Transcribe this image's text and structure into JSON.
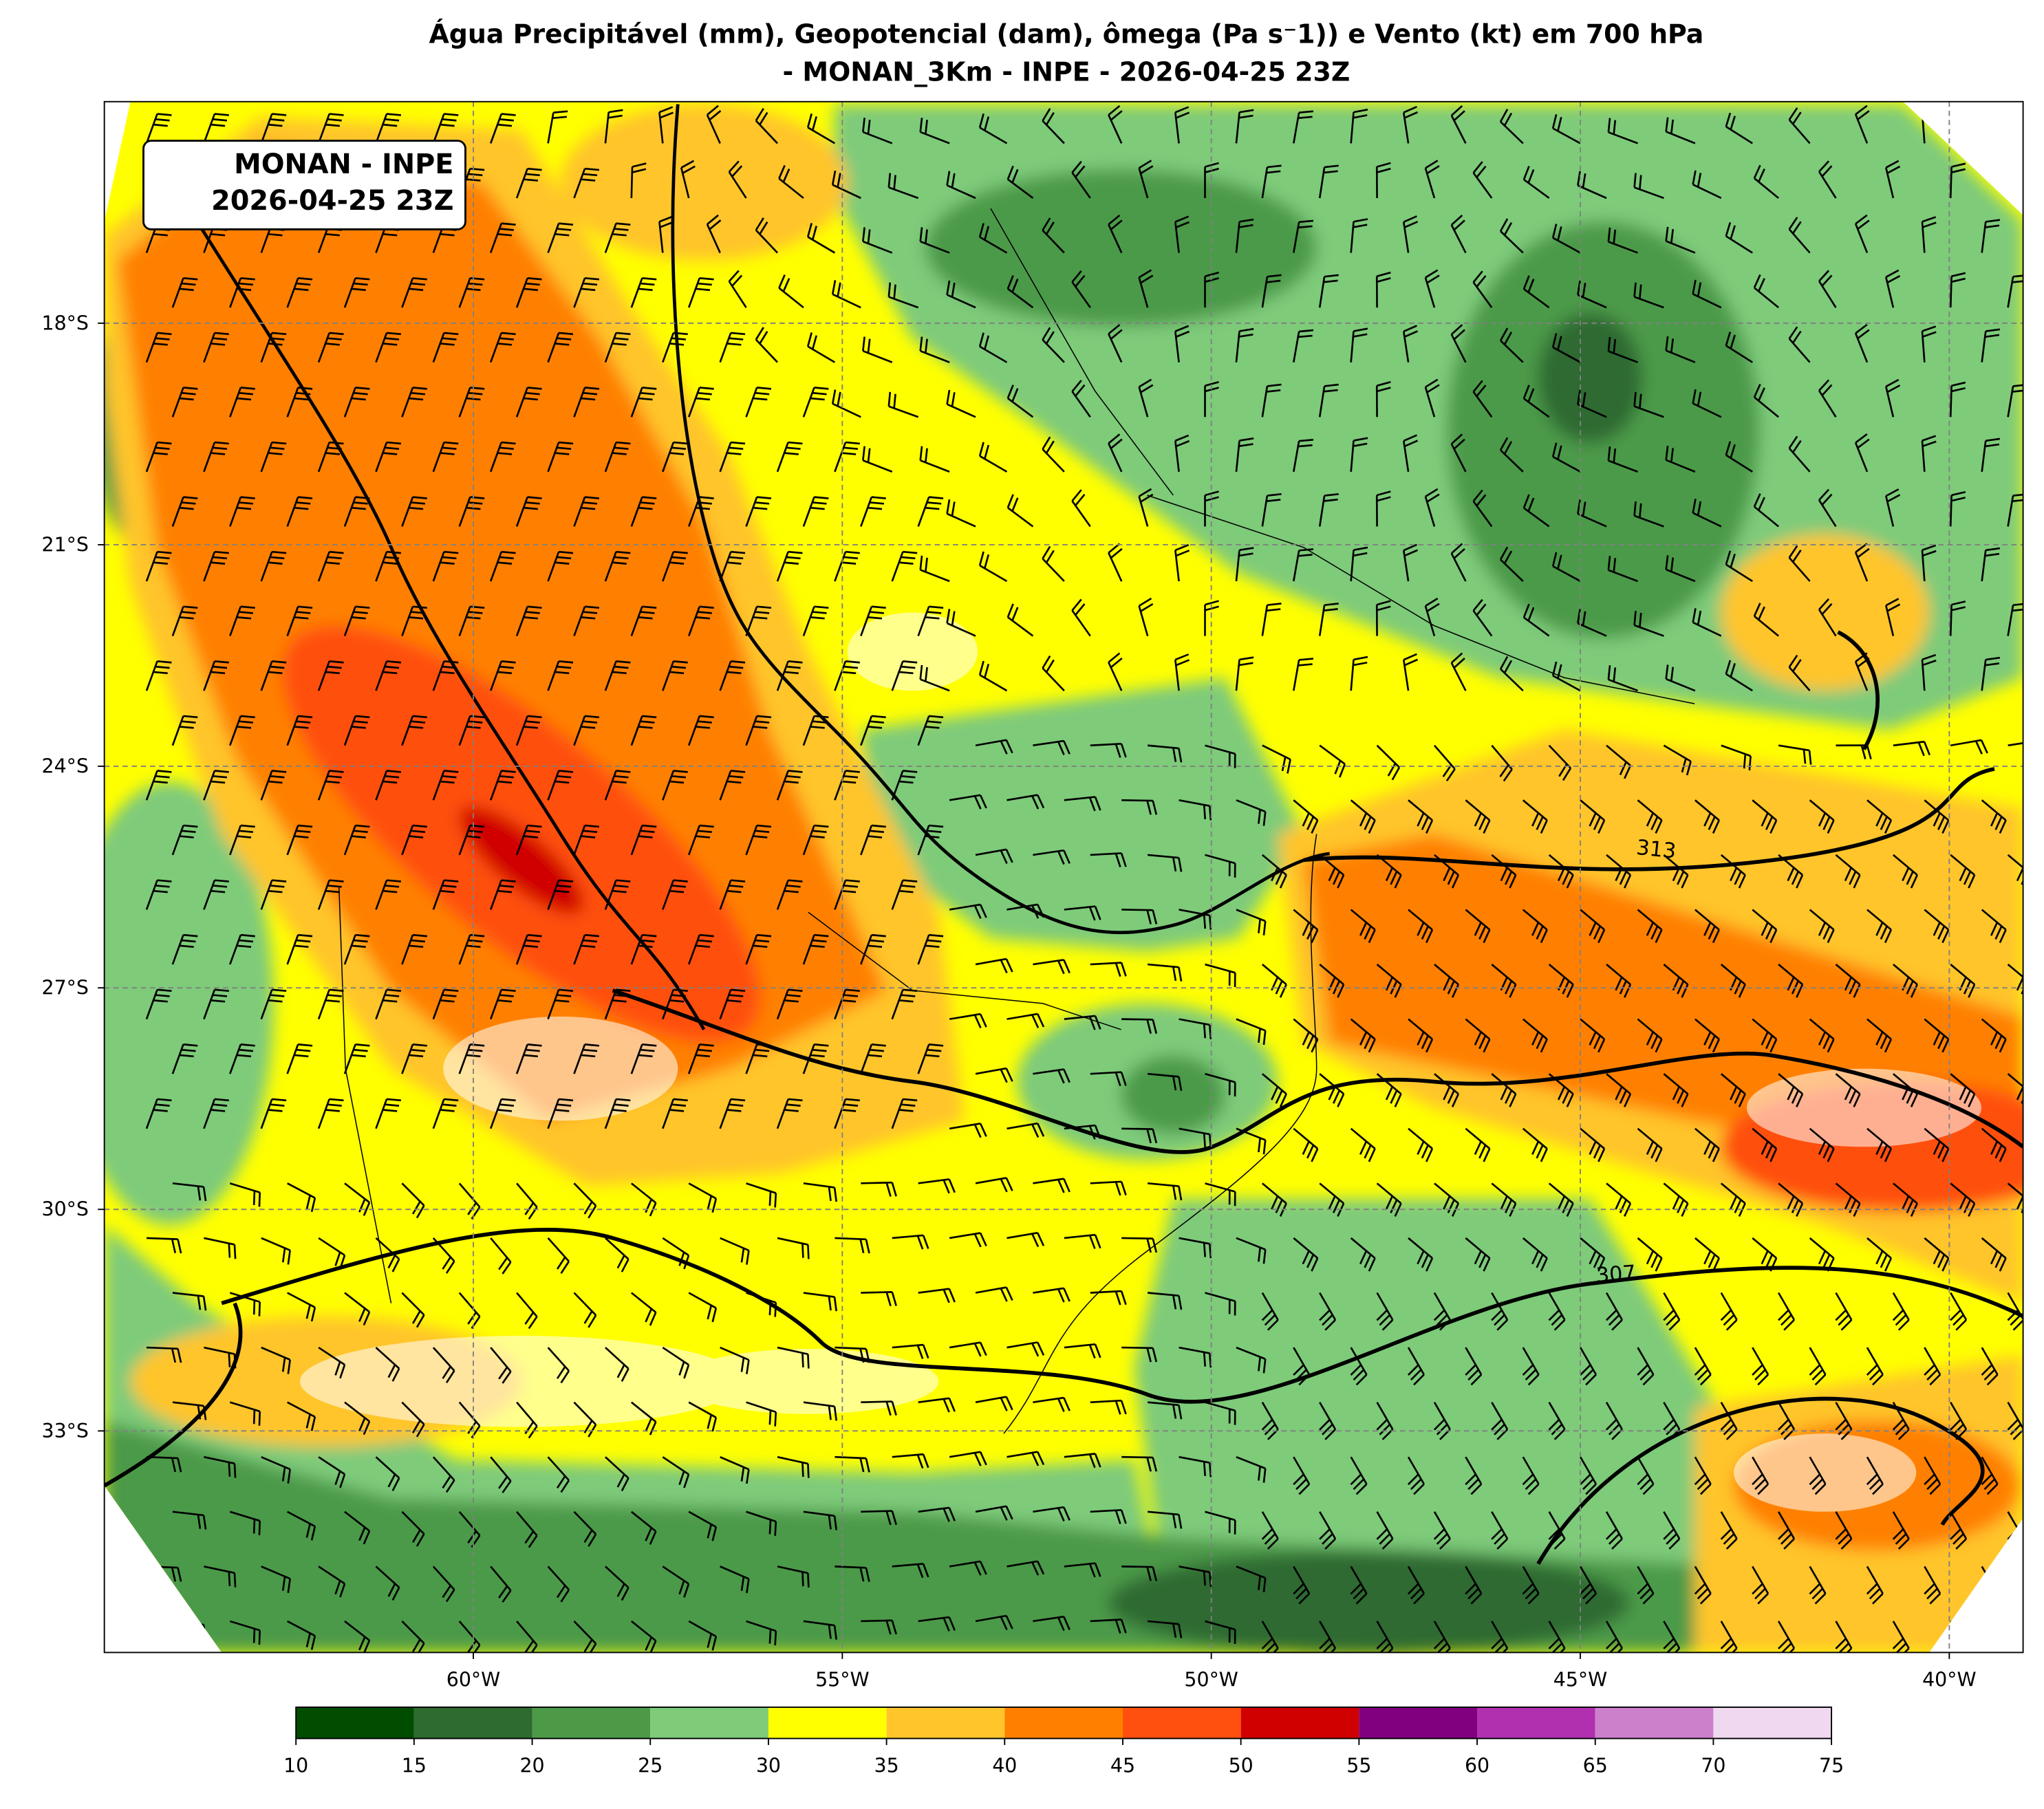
{
  "title": "Água Precipitável (mm), Geopotencial (dam), ômega (Pa s⁻1)) e Vento (kt) em 700 hPa",
  "subtitle": "- MONAN_3Km - INPE - 2026-04-25 23Z",
  "annotation": [
    "MONAN - INPE",
    "2026-04-25 23Z"
  ],
  "map": {
    "xlim": [
      -65,
      -39
    ],
    "ylim": [
      -36,
      -15
    ],
    "xticks": [
      {
        "value": -60,
        "label": "60°W"
      },
      {
        "value": -55,
        "label": "55°W"
      },
      {
        "value": -50,
        "label": "50°W"
      },
      {
        "value": -45,
        "label": "45°W"
      },
      {
        "value": -40,
        "label": "40°W"
      }
    ],
    "yticks": [
      {
        "value": -18,
        "label": "18°S"
      },
      {
        "value": -21,
        "label": "21°S"
      },
      {
        "value": -24,
        "label": "24°S"
      },
      {
        "value": -27,
        "label": "27°S"
      },
      {
        "value": -30,
        "label": "30°S"
      },
      {
        "value": -33,
        "label": "33°S"
      }
    ],
    "grid": true
  },
  "colorbar": {
    "bounds": [
      10,
      15,
      20,
      25,
      30,
      35,
      40,
      45,
      50,
      55,
      60,
      65,
      70,
      75
    ],
    "colors": [
      "#004d00",
      "#2e6b30",
      "#4c9a48",
      "#7ecb7a",
      "#ffff00",
      "#ffc52a",
      "#ff8000",
      "#ff5010",
      "#d00000",
      "#800080",
      "#b030b0",
      "#cc80cc",
      "#f0d8f0"
    ]
  },
  "contour_labels": [
    "313",
    "307"
  ]
}
